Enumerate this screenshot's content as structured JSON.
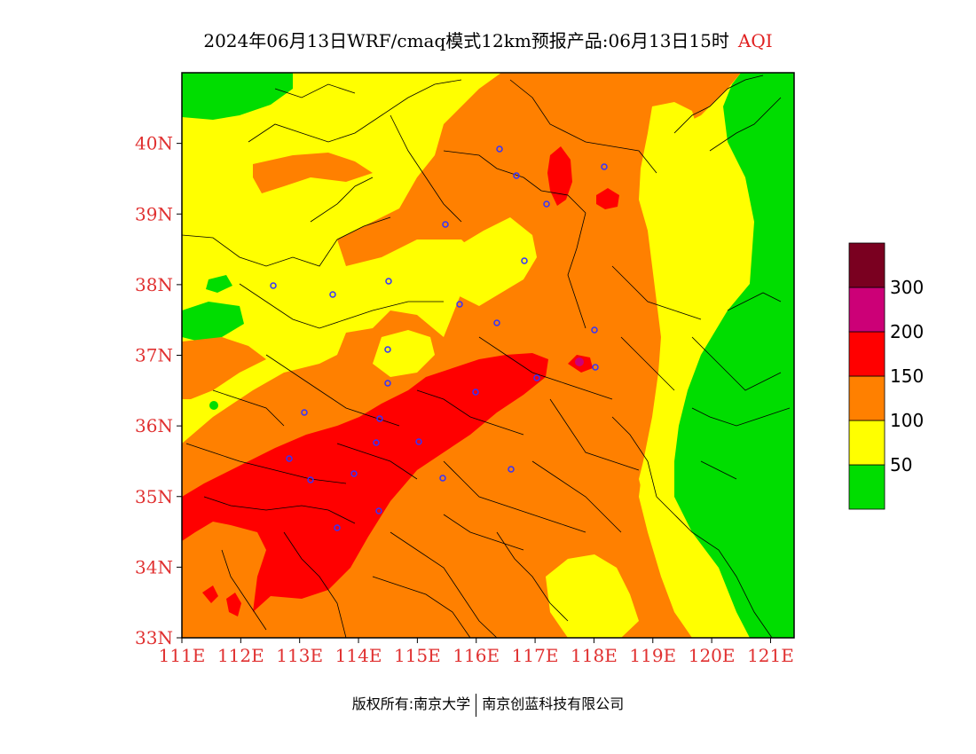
{
  "header": {
    "title": "2024年06月13日WRF/cmaq模式12km预报产品:06月13日15时",
    "variable": "AQI"
  },
  "map": {
    "lon_range": [
      111,
      121.4
    ],
    "lat_range": [
      33,
      41
    ],
    "lon_ticks": [
      "111E",
      "112E",
      "113E",
      "114E",
      "115E",
      "116E",
      "117E",
      "118E",
      "119E",
      "120E",
      "121E"
    ],
    "lat_ticks": [
      "33N",
      "34N",
      "35N",
      "36N",
      "37N",
      "38N",
      "39N",
      "40N"
    ],
    "axis_label_color": "#e03030",
    "colors": {
      "good": "#00dd00",
      "moderate": "#ffff00",
      "usg": "#ff8000",
      "unhealthy": "#ff0000",
      "very_unhealthy": "#cc0077",
      "hazardous": "#7a0020",
      "station": "#3333ff"
    }
  },
  "legend": {
    "colors": [
      "#00dd00",
      "#ffff00",
      "#ff8000",
      "#ff0000",
      "#cc0077",
      "#7a0020"
    ],
    "labels": [
      "50",
      "100",
      "150",
      "200",
      "300"
    ]
  },
  "footer": {
    "copyright": "版权所有:南京大学",
    "company": "南京创蓝科技有限公司"
  }
}
